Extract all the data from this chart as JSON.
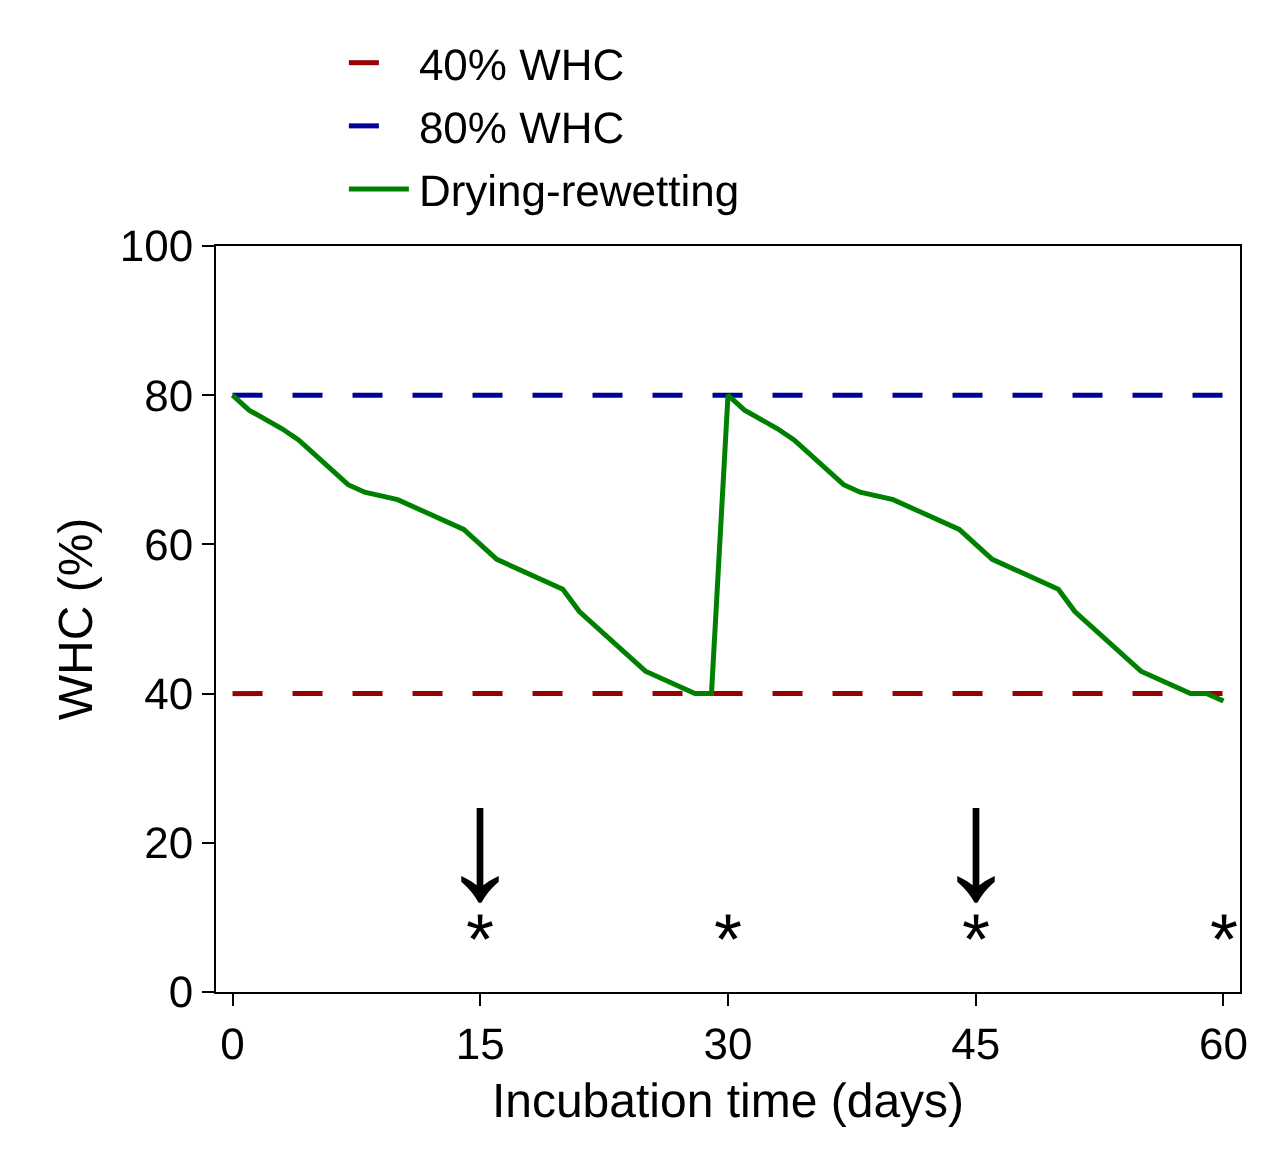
{
  "chart_data": {
    "type": "line",
    "xlabel": "Incubation time (days)",
    "ylabel": "WHC (%)",
    "xlim": [
      -1,
      61
    ],
    "xticks": [
      0,
      15,
      30,
      45,
      60
    ],
    "ylim": [
      0,
      100
    ],
    "yticks": [
      0,
      20,
      40,
      60,
      80,
      100
    ],
    "legend": "top",
    "marker": "none",
    "series": [
      {
        "name": "40% WHC",
        "color": "#990000",
        "line_style": "dashed",
        "x": [
          0,
          60
        ],
        "values": [
          40,
          40
        ]
      },
      {
        "name": "80% WHC",
        "color": "#000099",
        "line_style": "dashed",
        "x": [
          0,
          60
        ],
        "values": [
          80,
          80
        ]
      },
      {
        "name": "Drying-rewetting",
        "color": "#008000",
        "line_style": "solid",
        "x": [
          0,
          1,
          3,
          4,
          7,
          8,
          10,
          12,
          14,
          16,
          20,
          21,
          25,
          28,
          29,
          30,
          31,
          33,
          34,
          37,
          38,
          40,
          42,
          44,
          46,
          50,
          51,
          55,
          58,
          59,
          60
        ],
        "values": [
          80,
          78,
          75.5,
          74,
          68,
          67,
          66,
          64,
          62,
          58,
          54,
          51,
          43,
          40,
          40,
          80,
          78,
          75.5,
          74,
          68,
          67,
          66,
          64,
          62,
          58,
          54,
          51,
          43,
          40,
          40,
          39
        ]
      }
    ],
    "annotations": [
      "↓",
      "↓",
      "*",
      "*",
      "*",
      "*"
    ]
  }
}
